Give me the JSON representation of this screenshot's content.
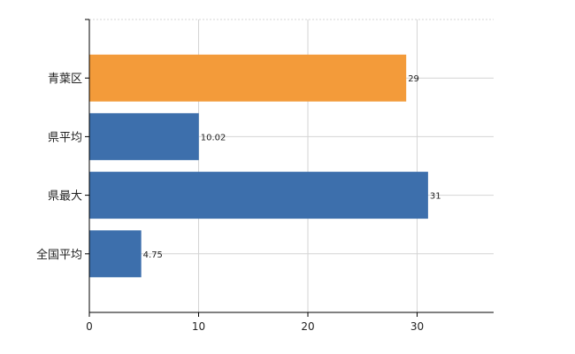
{
  "chart_data": {
    "type": "bar",
    "orientation": "horizontal",
    "categories": [
      "青葉区",
      "県平均",
      "県最大",
      "全国平均"
    ],
    "values": [
      29,
      10.02,
      31,
      4.75
    ],
    "value_labels": [
      "29",
      "10.02",
      "31",
      "4.75"
    ],
    "bar_colors": [
      "#f39b3a",
      "#3d6fac",
      "#3d6fac",
      "#3d6fac"
    ],
    "xlim": [
      0,
      37
    ],
    "x_ticks": [
      0,
      10,
      20,
      30
    ],
    "x_tick_labels": [
      "0",
      "10",
      "20",
      "30"
    ],
    "grid": true,
    "legend": "none",
    "title": "",
    "xlabel": "",
    "ylabel": ""
  }
}
